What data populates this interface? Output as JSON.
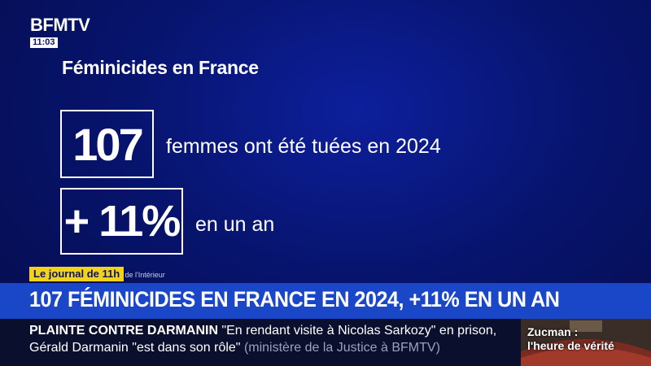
{
  "channel": {
    "logo": "BFMTV",
    "time": "11:03"
  },
  "graphic": {
    "title": "Féminicides en France",
    "stats": [
      {
        "value": "107",
        "description": "femmes ont été tuées en 2024"
      },
      {
        "value": "+ 11%",
        "description": "en un an"
      }
    ],
    "source_fragment": "e de l'Intérieur"
  },
  "show": {
    "name": "Le journal de 11h"
  },
  "headline": "107 FÉMINICIDES EN FRANCE EN 2024, +11% EN UN AN",
  "ticker": {
    "topic": "PLAINTE CONTRE DARMANIN",
    "line1_text": "\"En rendant visite à Nicolas Sarkozy\" en prison,",
    "line2_text": "Gérald Darmanin \"est dans son rôle\"",
    "line2_source": "(ministère de la Justice à BFMTV)"
  },
  "promo": {
    "line1": "Zucman :",
    "line2": "l'heure de vérité"
  },
  "colors": {
    "background": "#07146e",
    "headline_bar": "#1a46c8",
    "show_tag": "#f2d21b",
    "ticker": "#0a0f2e"
  }
}
